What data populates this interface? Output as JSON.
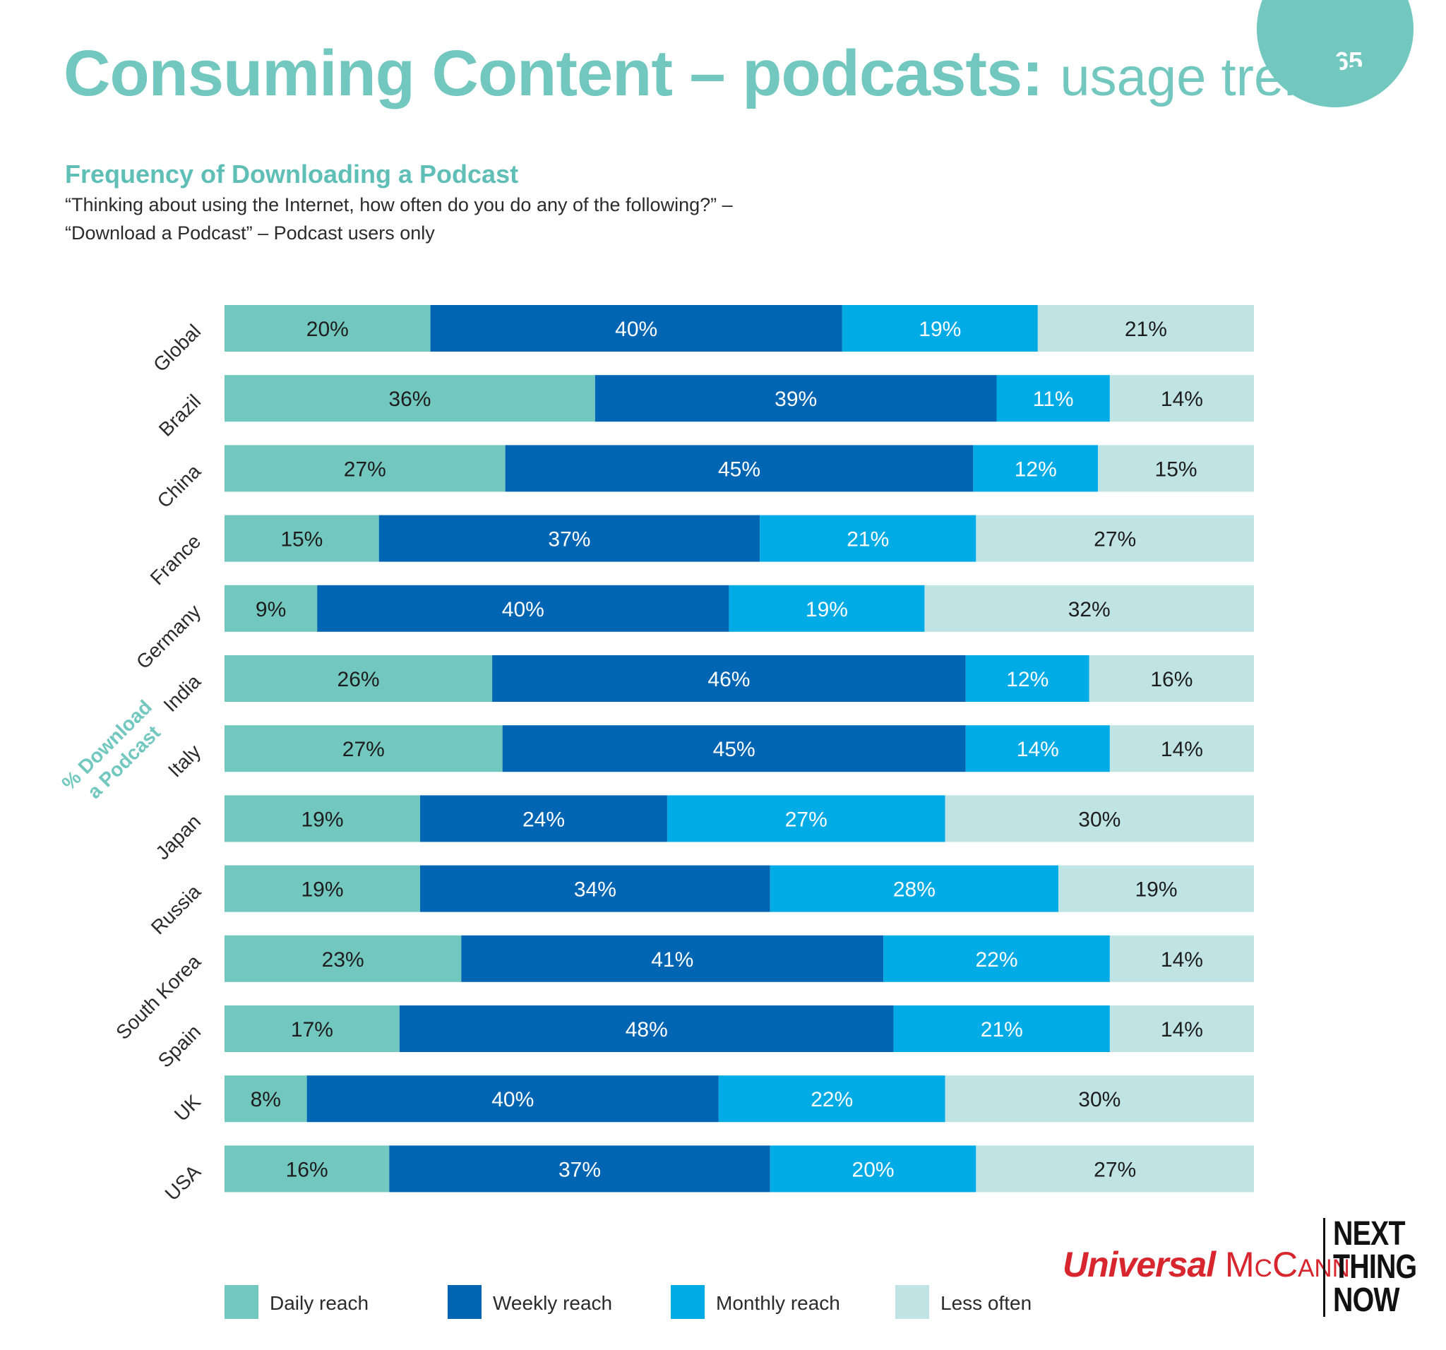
{
  "page": {
    "number": "65"
  },
  "header": {
    "title_bold": "Consuming Content – podcasts:",
    "title_light": "usage trends",
    "subtitle": "Frequency of Downloading a Podcast",
    "question_line1": "“Thinking about using the Internet, how often do you do any of the following?” –",
    "question_line2": "“Download a Podcast” – Podcast users only"
  },
  "colors": {
    "daily": "#72c7bf",
    "weekly": "#0066b3",
    "monthly": "#00abe6",
    "less_often": "#bfe4e3",
    "accent": "#72c7bf"
  },
  "chart_data": {
    "type": "bar",
    "orientation": "horizontal",
    "stacked": true,
    "percent": true,
    "y_axis_title": [
      "% Download",
      "a Podcast"
    ],
    "categories": [
      "Global",
      "Brazil",
      "China",
      "France",
      "Germany",
      "India",
      "Italy",
      "Japan",
      "Russia",
      "South Korea",
      "Spain",
      "UK",
      "USA"
    ],
    "series": [
      {
        "name": "Daily reach",
        "key": "daily",
        "values": [
          20,
          36,
          27,
          15,
          9,
          26,
          27,
          19,
          19,
          23,
          17,
          8,
          16
        ]
      },
      {
        "name": "Weekly reach",
        "key": "weekly",
        "values": [
          40,
          39,
          45,
          37,
          40,
          46,
          45,
          24,
          34,
          41,
          48,
          40,
          37
        ]
      },
      {
        "name": "Monthly reach",
        "key": "monthly",
        "values": [
          19,
          11,
          12,
          21,
          19,
          12,
          14,
          27,
          28,
          22,
          21,
          22,
          20
        ]
      },
      {
        "name": "Less often",
        "key": "less_often",
        "values": [
          21,
          14,
          15,
          27,
          32,
          16,
          14,
          30,
          19,
          14,
          14,
          30,
          27
        ]
      }
    ],
    "legend_position": "bottom"
  },
  "legend": {
    "daily": "Daily reach",
    "weekly": "Weekly reach",
    "monthly": "Monthly reach",
    "less_often": "Less often"
  },
  "logos": {
    "um_universal": "Universal",
    "um_mccann": "McCann",
    "ntn_line1": "NEXT",
    "ntn_line2": "THING",
    "ntn_line3": "NOW"
  }
}
